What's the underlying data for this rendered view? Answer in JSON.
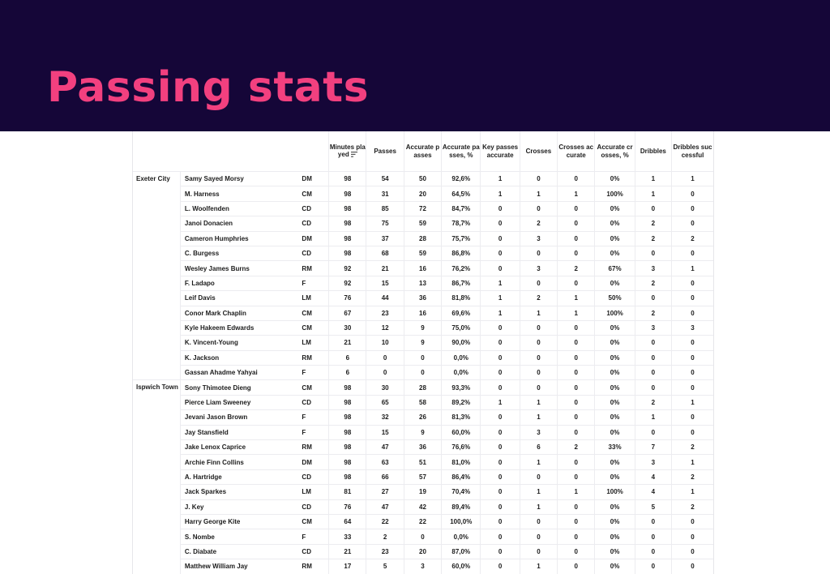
{
  "title": "Passing stats",
  "columns": [
    "Minutes played",
    "Passes",
    "Accurate passes",
    "Accurate passes, %",
    "Key passes accurate",
    "Crosses",
    "Crosses accurate",
    "Accurate crosses, %",
    "Dribbles",
    "Dribbles successful"
  ],
  "teams": [
    {
      "name": "Exeter City",
      "players": [
        {
          "name": "Samy Sayed Morsy",
          "pos": "DM",
          "stats": [
            "98",
            "54",
            "50",
            "92,6%",
            "1",
            "0",
            "0",
            "0%",
            "1",
            "1"
          ]
        },
        {
          "name": "M. Harness",
          "pos": "CM",
          "stats": [
            "98",
            "31",
            "20",
            "64,5%",
            "1",
            "1",
            "1",
            "100%",
            "1",
            "0"
          ]
        },
        {
          "name": "L. Woolfenden",
          "pos": "CD",
          "stats": [
            "98",
            "85",
            "72",
            "84,7%",
            "0",
            "0",
            "0",
            "0%",
            "0",
            "0"
          ]
        },
        {
          "name": "Janoi Donacien",
          "pos": "CD",
          "stats": [
            "98",
            "75",
            "59",
            "78,7%",
            "0",
            "2",
            "0",
            "0%",
            "2",
            "0"
          ]
        },
        {
          "name": "Cameron Humphries",
          "pos": "DM",
          "stats": [
            "98",
            "37",
            "28",
            "75,7%",
            "0",
            "3",
            "0",
            "0%",
            "2",
            "2"
          ]
        },
        {
          "name": "C. Burgess",
          "pos": "CD",
          "stats": [
            "98",
            "68",
            "59",
            "86,8%",
            "0",
            "0",
            "0",
            "0%",
            "0",
            "0"
          ]
        },
        {
          "name": "Wesley James Burns",
          "pos": "RM",
          "stats": [
            "92",
            "21",
            "16",
            "76,2%",
            "0",
            "3",
            "2",
            "67%",
            "3",
            "1"
          ]
        },
        {
          "name": "F. Ladapo",
          "pos": "F",
          "stats": [
            "92",
            "15",
            "13",
            "86,7%",
            "1",
            "0",
            "0",
            "0%",
            "2",
            "0"
          ]
        },
        {
          "name": "Leif Davis",
          "pos": "LM",
          "stats": [
            "76",
            "44",
            "36",
            "81,8%",
            "1",
            "2",
            "1",
            "50%",
            "0",
            "0"
          ]
        },
        {
          "name": "Conor Mark Chaplin",
          "pos": "CM",
          "stats": [
            "67",
            "23",
            "16",
            "69,6%",
            "1",
            "1",
            "1",
            "100%",
            "2",
            "0"
          ]
        },
        {
          "name": "Kyle Hakeem Edwards",
          "pos": "CM",
          "stats": [
            "30",
            "12",
            "9",
            "75,0%",
            "0",
            "0",
            "0",
            "0%",
            "3",
            "3"
          ]
        },
        {
          "name": "K. Vincent-Young",
          "pos": "LM",
          "stats": [
            "21",
            "10",
            "9",
            "90,0%",
            "0",
            "0",
            "0",
            "0%",
            "0",
            "0"
          ]
        },
        {
          "name": "K. Jackson",
          "pos": "RM",
          "stats": [
            "6",
            "0",
            "0",
            "0,0%",
            "0",
            "0",
            "0",
            "0%",
            "0",
            "0"
          ]
        },
        {
          "name": "Gassan Ahadme Yahyai",
          "pos": "F",
          "stats": [
            "6",
            "0",
            "0",
            "0,0%",
            "0",
            "0",
            "0",
            "0%",
            "0",
            "0"
          ]
        }
      ]
    },
    {
      "name": "Ispwich Town",
      "players": [
        {
          "name": "Sony Thimotee Dieng",
          "pos": "CM",
          "stats": [
            "98",
            "30",
            "28",
            "93,3%",
            "0",
            "0",
            "0",
            "0%",
            "0",
            "0"
          ]
        },
        {
          "name": "Pierce Liam Sweeney",
          "pos": "CD",
          "stats": [
            "98",
            "65",
            "58",
            "89,2%",
            "1",
            "1",
            "0",
            "0%",
            "2",
            "1"
          ]
        },
        {
          "name": "Jevani Jason Brown",
          "pos": "F",
          "stats": [
            "98",
            "32",
            "26",
            "81,3%",
            "0",
            "1",
            "0",
            "0%",
            "1",
            "0"
          ]
        },
        {
          "name": "Jay Stansfield",
          "pos": "F",
          "stats": [
            "98",
            "15",
            "9",
            "60,0%",
            "0",
            "3",
            "0",
            "0%",
            "0",
            "0"
          ]
        },
        {
          "name": "Jake Lenox Caprice",
          "pos": "RM",
          "stats": [
            "98",
            "47",
            "36",
            "76,6%",
            "0",
            "6",
            "2",
            "33%",
            "7",
            "2"
          ]
        },
        {
          "name": "Archie Finn Collins",
          "pos": "DM",
          "stats": [
            "98",
            "63",
            "51",
            "81,0%",
            "0",
            "1",
            "0",
            "0%",
            "3",
            "1"
          ]
        },
        {
          "name": "A. Hartridge",
          "pos": "CD",
          "stats": [
            "98",
            "66",
            "57",
            "86,4%",
            "0",
            "0",
            "0",
            "0%",
            "4",
            "2"
          ]
        },
        {
          "name": "Jack Sparkes",
          "pos": "LM",
          "stats": [
            "81",
            "27",
            "19",
            "70,4%",
            "0",
            "1",
            "1",
            "100%",
            "4",
            "1"
          ]
        },
        {
          "name": "J. Key",
          "pos": "CD",
          "stats": [
            "76",
            "47",
            "42",
            "89,4%",
            "0",
            "1",
            "0",
            "0%",
            "5",
            "2"
          ]
        },
        {
          "name": "Harry George Kite",
          "pos": "CM",
          "stats": [
            "64",
            "22",
            "22",
            "100,0%",
            "0",
            "0",
            "0",
            "0%",
            "0",
            "0"
          ]
        },
        {
          "name": "S. Nombe",
          "pos": "F",
          "stats": [
            "33",
            "2",
            "0",
            "0,0%",
            "0",
            "0",
            "0",
            "0%",
            "0",
            "0"
          ]
        },
        {
          "name": "C. Diabate",
          "pos": "CD",
          "stats": [
            "21",
            "23",
            "20",
            "87,0%",
            "0",
            "0",
            "0",
            "0%",
            "0",
            "0"
          ]
        },
        {
          "name": "Matthew William Jay",
          "pos": "RM",
          "stats": [
            "17",
            "5",
            "3",
            "60,0%",
            "0",
            "1",
            "0",
            "0%",
            "0",
            "0"
          ]
        }
      ]
    }
  ],
  "colors": {
    "banner": "#150638",
    "title": "#f2407f"
  },
  "icons": {
    "sort": "sort-icon"
  }
}
